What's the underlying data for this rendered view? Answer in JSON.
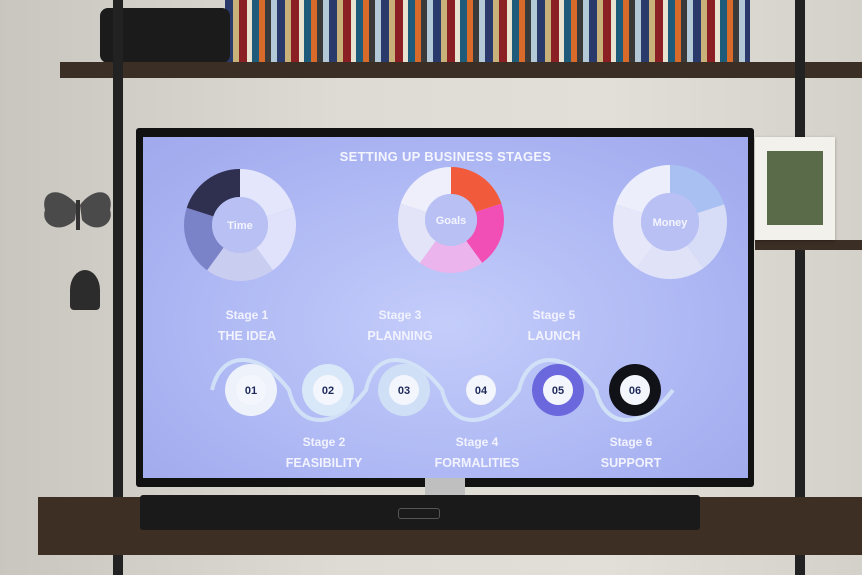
{
  "screen": {
    "title": "SETTING UP BUSINESS STAGES",
    "donuts": [
      {
        "label": "Time",
        "colors": [
          "#e4e6fb",
          "#dfe2fa",
          "#c9cdf0",
          "#7a82c8",
          "#2f2f4f"
        ]
      },
      {
        "label": "Goals",
        "colors": [
          "#f25a3c",
          "#f24fb6",
          "#ecb4ec",
          "#e3e4f7",
          "#eeeffb"
        ]
      },
      {
        "label": "Money",
        "colors": [
          "#a9c0f2",
          "#d7dcf7",
          "#e0e3f8",
          "#e6e8fa",
          "#eceefb"
        ]
      }
    ],
    "stages": [
      {
        "stage": "Stage 1",
        "name": "THE IDEA",
        "number": "01",
        "ring": "#eef2fb",
        "pos": "top"
      },
      {
        "stage": "Stage 2",
        "name": "FEASIBILITY",
        "number": "02",
        "ring": "#d8e8f8",
        "pos": "bottom"
      },
      {
        "stage": "Stage 3",
        "name": "PLANNING",
        "number": "03",
        "ring": "#cfe0f6",
        "pos": "top"
      },
      {
        "stage": "Stage 4",
        "name": "FORMALITIES",
        "number": "04",
        "ring": "#f2f3fb",
        "pos": "bottom"
      },
      {
        "stage": "Stage 5",
        "name": "LAUNCH",
        "number": "05",
        "ring": "#6a68dc",
        "pos": "top"
      },
      {
        "stage": "Stage 6",
        "name": "SUPPORT",
        "number": "06",
        "ring": "#111118",
        "pos": "bottom"
      }
    ],
    "wave_color": "#d6e6f7",
    "text_color": "#1e2a5a"
  }
}
